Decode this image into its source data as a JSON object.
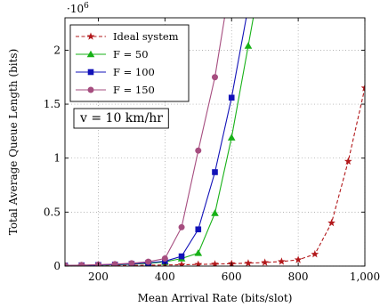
{
  "chart_data": {
    "type": "line",
    "xlabel": "Mean Arrival Rate (bits/slot)",
    "ylabel": "Total Average Queue Length (bits)",
    "y_scale_label": "·10",
    "y_scale_exponent": "6",
    "xlim": [
      100,
      1000
    ],
    "ylim": [
      0,
      2300000
    ],
    "x_ticks": [
      200,
      400,
      600,
      800,
      1000
    ],
    "x_tick_labels": [
      "200",
      "400",
      "600",
      "800",
      "1,000"
    ],
    "y_ticks": [
      0,
      500000,
      1000000,
      1500000,
      2000000
    ],
    "y_tick_labels": [
      "0",
      "0.5",
      "1",
      "1.5",
      "2"
    ],
    "grid": true,
    "legend_position": "top-left",
    "annotation": "v = 10 km/hr",
    "series": [
      {
        "name": "Ideal system",
        "color": "#b2181b",
        "marker": "star",
        "dash": "dashed",
        "x": [
          100,
          150,
          200,
          250,
          300,
          350,
          400,
          450,
          500,
          550,
          600,
          650,
          700,
          750,
          800,
          850,
          900,
          950,
          1000
        ],
        "y": [
          2000,
          3000,
          4000,
          5000,
          6000,
          8000,
          10000,
          12000,
          15000,
          18000,
          22000,
          27000,
          33000,
          42000,
          58000,
          110000,
          400000,
          970000,
          1650000
        ]
      },
      {
        "name": "F = 50",
        "color": "#17b117",
        "marker": "triangle",
        "dash": "solid",
        "x": [
          100,
          150,
          200,
          250,
          300,
          350,
          400,
          450,
          500,
          550,
          600,
          650,
          700
        ],
        "y": [
          4000,
          6000,
          9000,
          12000,
          17000,
          25000,
          38000,
          70000,
          120000,
          490000,
          1190000,
          2040000,
          2900000
        ]
      },
      {
        "name": "F = 100",
        "color": "#1212b8",
        "marker": "square",
        "dash": "solid",
        "x": [
          100,
          150,
          200,
          250,
          300,
          350,
          400,
          450,
          500,
          550,
          600,
          650,
          700
        ],
        "y": [
          5000,
          7000,
          10000,
          14000,
          20000,
          30000,
          45000,
          90000,
          340000,
          870000,
          1560000,
          2400000,
          3300000
        ]
      },
      {
        "name": "F = 150",
        "color": "#a64d7f",
        "marker": "circle",
        "dash": "solid",
        "x": [
          100,
          150,
          200,
          250,
          300,
          350,
          400,
          450,
          500,
          550,
          600
        ],
        "y": [
          6000,
          9000,
          13000,
          18000,
          26000,
          40000,
          70000,
          360000,
          1070000,
          1750000,
          2700000
        ]
      }
    ]
  }
}
